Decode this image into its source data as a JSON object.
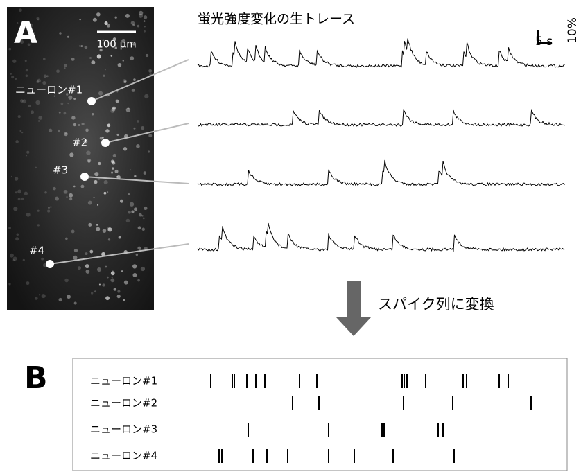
{
  "panel_a": {
    "label": "A",
    "scale_bar": "100 μm",
    "traces_title": "蛍光強度変化の生トレース",
    "time_scale": "5 s",
    "amp_scale": "10%",
    "neuron_labels": [
      "ニューロン#1",
      "#2",
      "#3",
      "#4"
    ]
  },
  "arrow_label": "スパイク列に変換",
  "panel_b": {
    "label": "B",
    "rows": [
      {
        "name": "ニューロン#1",
        "spikes": [
          1,
          8.75,
          9.5,
          14,
          17.25,
          20.5,
          33,
          39.25,
          70,
          70.75,
          71.75,
          78.5,
          92,
          93.25,
          105,
          108.25
        ]
      },
      {
        "name": "ニューロン#2",
        "spikes": [
          30.5,
          40,
          70.5,
          88.25,
          116.5
        ]
      },
      {
        "name": "ニューロン#3",
        "spikes": [
          14.5,
          43.5,
          62.75,
          63.5,
          83,
          84.75
        ]
      },
      {
        "name": "ニューロン#4",
        "spikes": [
          4,
          5,
          16.25,
          21,
          21.5,
          28.75,
          43.5,
          52.75,
          66.75,
          88.75
        ]
      }
    ]
  }
}
